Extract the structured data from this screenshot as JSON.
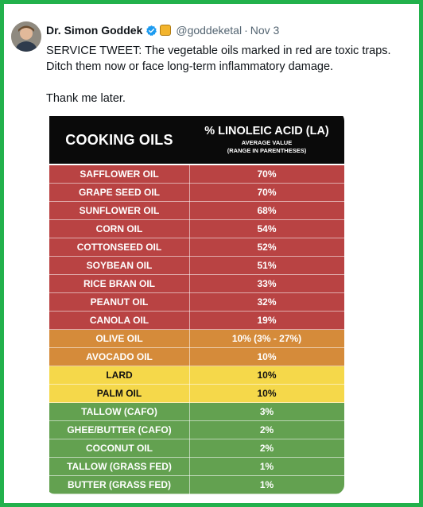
{
  "tweet": {
    "author_name": "Dr. Simon Goddek",
    "handle": "@goddeketal",
    "separator": "·",
    "time": "Nov 3",
    "text_line1": "SERVICE TWEET: The vegetable oils marked in red are toxic traps. Ditch them now or face long-term inflammatory damage.",
    "text_line2": "Thank me later.",
    "icons": {
      "verified": "verified-check-icon",
      "org": "org-affiliation-badge-icon",
      "avatar": "profile-photo"
    }
  },
  "table": {
    "header_left": "COOKING OILS",
    "header_right": "% LINOLEIC ACID (LA)",
    "header_sub1": "AVERAGE VALUE",
    "header_sub2": "(RANGE IN PARENTHESES)",
    "colors": {
      "red": "#b94343",
      "orange": "#d58b3a",
      "yellow": "#f5d84a",
      "green": "#63a150"
    },
    "rows": [
      {
        "oil": "SAFFLOWER OIL",
        "value": "70%",
        "color": "red"
      },
      {
        "oil": "GRAPE SEED OIL",
        "value": "70%",
        "color": "red"
      },
      {
        "oil": "SUNFLOWER OIL",
        "value": "68%",
        "color": "red"
      },
      {
        "oil": "CORN OIL",
        "value": "54%",
        "color": "red"
      },
      {
        "oil": "COTTONSEED OIL",
        "value": "52%",
        "color": "red"
      },
      {
        "oil": "SOYBEAN OIL",
        "value": "51%",
        "color": "red"
      },
      {
        "oil": "RICE BRAN OIL",
        "value": "33%",
        "color": "red"
      },
      {
        "oil": "PEANUT OIL",
        "value": "32%",
        "color": "red"
      },
      {
        "oil": "CANOLA OIL",
        "value": "19%",
        "color": "red"
      },
      {
        "oil": "OLIVE OIL",
        "value": "10% (3% - 27%)",
        "color": "orange"
      },
      {
        "oil": "AVOCADO OIL",
        "value": "10%",
        "color": "orange"
      },
      {
        "oil": "LARD",
        "value": "10%",
        "color": "yellow"
      },
      {
        "oil": "PALM OIL",
        "value": "10%",
        "color": "yellow"
      },
      {
        "oil": "TALLOW (CAFO)",
        "value": "3%",
        "color": "green"
      },
      {
        "oil": "GHEE/BUTTER (CAFO)",
        "value": "2%",
        "color": "green"
      },
      {
        "oil": "COCONUT OIL",
        "value": "2%",
        "color": "green"
      },
      {
        "oil": "TALLOW (GRASS FED)",
        "value": "1%",
        "color": "green"
      },
      {
        "oil": "BUTTER (GRASS FED)",
        "value": "1%",
        "color": "green"
      }
    ]
  }
}
